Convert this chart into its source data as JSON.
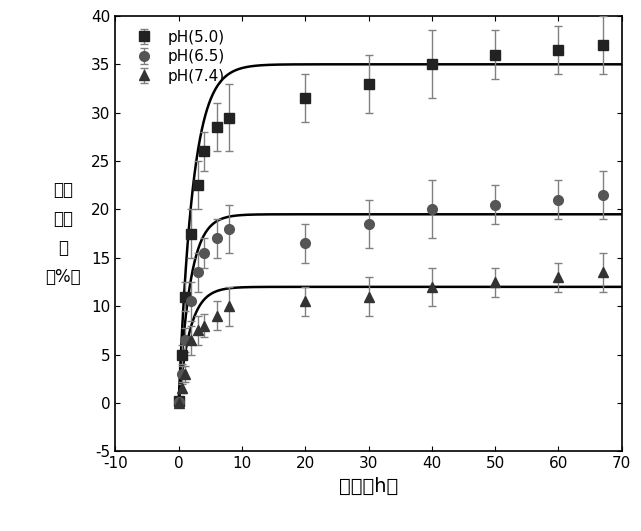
{
  "title": "",
  "xlabel": "时间（h）",
  "ylabel": "累积\n释药\n率\n（%）",
  "xlim": [
    -10,
    70
  ],
  "ylim": [
    -5,
    40
  ],
  "xticks": [
    -10,
    0,
    10,
    20,
    30,
    40,
    50,
    60,
    70
  ],
  "yticks": [
    -5,
    0,
    5,
    10,
    15,
    20,
    25,
    30,
    35,
    40
  ],
  "series": [
    {
      "label": "pH(5.0)",
      "marker": "s",
      "color": "#222222",
      "x": [
        0,
        0.5,
        1,
        2,
        3,
        4,
        6,
        8,
        20,
        30,
        40,
        50,
        60,
        67
      ],
      "y": [
        0.2,
        5.0,
        11.0,
        17.5,
        22.5,
        26.0,
        28.5,
        29.5,
        31.5,
        33.0,
        35.0,
        36.0,
        36.5,
        37.0
      ],
      "yerr": [
        0.3,
        1.0,
        1.5,
        2.5,
        2.5,
        2.0,
        2.5,
        3.5,
        2.5,
        3.0,
        3.5,
        2.5,
        2.5,
        3.0
      ],
      "plateau": 35.0,
      "rate": 0.45
    },
    {
      "label": "pH(6.5)",
      "marker": "o",
      "color": "#555555",
      "x": [
        0,
        0.5,
        1,
        2,
        3,
        4,
        6,
        8,
        20,
        30,
        40,
        50,
        60,
        67
      ],
      "y": [
        0.1,
        3.0,
        6.5,
        10.5,
        13.5,
        15.5,
        17.0,
        18.0,
        16.5,
        18.5,
        20.0,
        20.5,
        21.0,
        21.5
      ],
      "yerr": [
        0.2,
        0.8,
        1.2,
        2.0,
        2.0,
        1.5,
        2.0,
        2.5,
        2.0,
        2.5,
        3.0,
        2.0,
        2.0,
        2.5
      ],
      "plateau": 19.5,
      "rate": 0.55
    },
    {
      "label": "pH(7.4)",
      "marker": "^",
      "color": "#333333",
      "x": [
        0,
        0.5,
        1,
        2,
        3,
        4,
        6,
        8,
        20,
        30,
        40,
        50,
        60,
        67
      ],
      "y": [
        0.0,
        1.5,
        3.0,
        6.5,
        7.5,
        8.0,
        9.0,
        10.0,
        10.5,
        11.0,
        12.0,
        12.5,
        13.0,
        13.5
      ],
      "yerr": [
        0.2,
        0.5,
        0.8,
        1.5,
        1.5,
        1.2,
        1.5,
        2.0,
        1.5,
        2.0,
        2.0,
        1.5,
        1.5,
        2.0
      ],
      "plateau": 12.0,
      "rate": 0.55
    }
  ],
  "background_color": "#ffffff",
  "markersize": 7,
  "linewidth": 1.8,
  "capsize": 3,
  "legend_fontsize": 11,
  "axis_label_fontsize": 14
}
